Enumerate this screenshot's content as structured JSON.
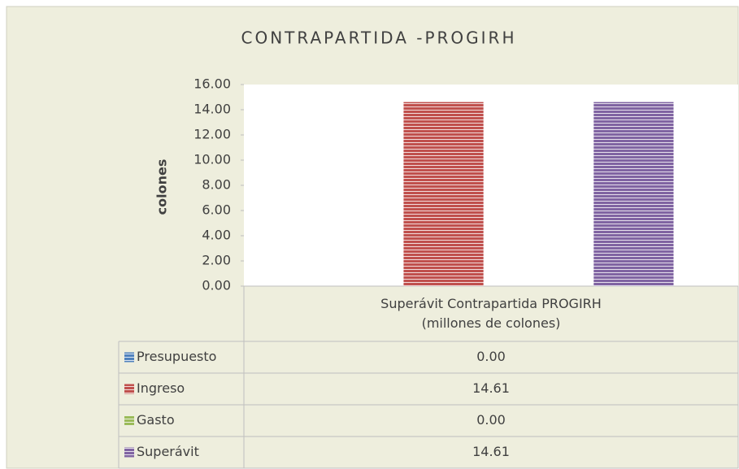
{
  "chart_data": {
    "type": "bar",
    "title": "CONTRAPARTIDA -PROGIRH",
    "y_label": "colones",
    "categories": [
      "Superávit Contrapartida PROGIRH\n(millones de colones)"
    ],
    "series": [
      {
        "name": "Presupuesto",
        "color": "#4f81bd",
        "values": [
          0
        ],
        "value_labels": [
          "0.00"
        ]
      },
      {
        "name": "Ingreso",
        "color": "#c0504d",
        "values": [
          14.61
        ],
        "value_labels": [
          "14.61"
        ]
      },
      {
        "name": "Gasto",
        "color": "#9bbb59",
        "values": [
          0
        ],
        "value_labels": [
          "0.00"
        ]
      },
      {
        "name": "Superávit",
        "color": "#8064a2",
        "values": [
          14.61
        ],
        "value_labels": [
          "14.61"
        ]
      }
    ],
    "ylim": [
      0,
      16
    ],
    "yticks": [
      {
        "value": 0,
        "label": "0.00"
      },
      {
        "value": 2,
        "label": "2.00"
      },
      {
        "value": 4,
        "label": "4.00"
      },
      {
        "value": 6,
        "label": "6.00"
      },
      {
        "value": 8,
        "label": "8.00"
      },
      {
        "value": 10,
        "label": "10.00"
      },
      {
        "value": 12,
        "label": "12.00"
      },
      {
        "value": 14,
        "label": "14.00"
      },
      {
        "value": 16,
        "label": "16.00"
      }
    ]
  }
}
